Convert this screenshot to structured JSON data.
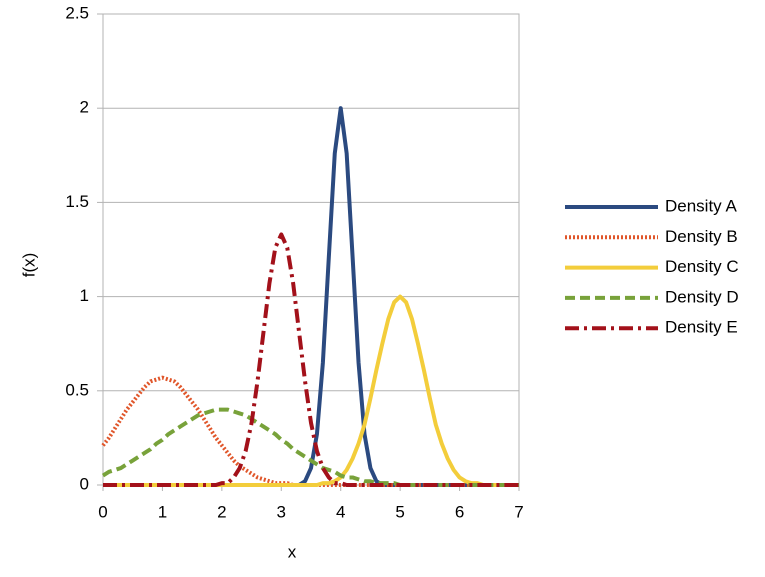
{
  "chart_data": {
    "type": "line",
    "xlabel": "x",
    "ylabel": "f(x)",
    "x": [
      0,
      0.1,
      0.2,
      0.3,
      0.4,
      0.5,
      0.6,
      0.7,
      0.8,
      0.9,
      1,
      1.1,
      1.2,
      1.3,
      1.4,
      1.5,
      1.6,
      1.7,
      1.8,
      1.9,
      2,
      2.1,
      2.2,
      2.3,
      2.4,
      2.5,
      2.6,
      2.7,
      2.8,
      2.9,
      3,
      3.1,
      3.2,
      3.3,
      3.4,
      3.5,
      3.6,
      3.7,
      3.8,
      3.9,
      4,
      4.1,
      4.2,
      4.3,
      4.4,
      4.5,
      4.6,
      4.7,
      4.8,
      4.9,
      5,
      5.1,
      5.2,
      5.3,
      5.4,
      5.5,
      5.6,
      5.7,
      5.8,
      5.9,
      6,
      6.1,
      6.2,
      6.3,
      6.4,
      6.5,
      6.6,
      6.7,
      6.8,
      6.9,
      7
    ],
    "series": [
      {
        "name": "Density A",
        "color": "#2b4a80",
        "dash": "solid",
        "values": [
          0,
          0,
          0,
          0,
          0,
          0,
          0,
          0,
          0,
          0,
          0,
          0,
          0,
          0,
          0,
          0,
          0,
          0,
          0,
          0,
          0,
          0,
          0,
          0,
          0,
          0,
          0,
          0,
          0,
          0,
          0,
          0,
          0,
          0,
          0.02,
          0.09,
          0.27,
          0.65,
          1.21,
          1.76,
          2,
          1.76,
          1.21,
          0.65,
          0.27,
          0.09,
          0.02,
          0,
          0,
          0,
          0,
          0,
          0,
          0,
          0,
          0,
          0,
          0,
          0,
          0,
          0,
          0,
          0,
          0,
          0,
          0,
          0,
          0,
          0,
          0,
          0
        ]
      },
      {
        "name": "Density B",
        "color": "#e0562a",
        "dash": "dotted",
        "values": [
          0.21,
          0.25,
          0.3,
          0.35,
          0.4,
          0.44,
          0.48,
          0.52,
          0.55,
          0.56,
          0.57,
          0.56,
          0.55,
          0.52,
          0.48,
          0.44,
          0.4,
          0.35,
          0.3,
          0.25,
          0.21,
          0.17,
          0.13,
          0.1,
          0.08,
          0.06,
          0.04,
          0.03,
          0.02,
          0.01,
          0.01,
          0.01,
          0,
          0,
          0,
          0,
          0,
          0,
          0,
          0,
          0,
          0,
          0,
          0,
          0,
          0,
          0,
          0,
          0,
          0,
          0,
          0,
          0,
          0,
          0,
          0,
          0,
          0,
          0,
          0,
          0,
          0,
          0,
          0,
          0,
          0,
          0,
          0,
          0,
          0,
          0
        ]
      },
      {
        "name": "Density C",
        "color": "#f3cd3b",
        "dash": "solid",
        "values": [
          0,
          0,
          0,
          0,
          0,
          0,
          0,
          0,
          0,
          0,
          0,
          0,
          0,
          0,
          0,
          0,
          0,
          0,
          0,
          0,
          0,
          0,
          0,
          0,
          0,
          0,
          0,
          0,
          0,
          0,
          0,
          0,
          0,
          0,
          0,
          0,
          0,
          0.01,
          0.01,
          0.02,
          0.04,
          0.08,
          0.14,
          0.22,
          0.32,
          0.46,
          0.61,
          0.75,
          0.88,
          0.97,
          1,
          0.97,
          0.88,
          0.75,
          0.61,
          0.46,
          0.32,
          0.22,
          0.14,
          0.08,
          0.04,
          0.02,
          0.01,
          0.01,
          0,
          0,
          0,
          0,
          0,
          0,
          0
        ]
      },
      {
        "name": "Density D",
        "color": "#78a23a",
        "dash": "dashed",
        "values": [
          0.05,
          0.07,
          0.08,
          0.09,
          0.11,
          0.13,
          0.15,
          0.17,
          0.19,
          0.22,
          0.24,
          0.27,
          0.29,
          0.31,
          0.33,
          0.35,
          0.37,
          0.38,
          0.39,
          0.4,
          0.4,
          0.4,
          0.39,
          0.38,
          0.37,
          0.35,
          0.33,
          0.31,
          0.29,
          0.27,
          0.24,
          0.22,
          0.19,
          0.17,
          0.15,
          0.13,
          0.11,
          0.09,
          0.08,
          0.07,
          0.05,
          0.04,
          0.04,
          0.03,
          0.02,
          0.02,
          0.01,
          0.01,
          0.01,
          0.01,
          0,
          0,
          0,
          0,
          0,
          0,
          0,
          0,
          0,
          0,
          0,
          0,
          0,
          0,
          0,
          0,
          0,
          0,
          0,
          0,
          0
        ]
      },
      {
        "name": "Density E",
        "color": "#a3111a",
        "dash": "dashdot",
        "values": [
          0,
          0,
          0,
          0,
          0,
          0,
          0,
          0,
          0,
          0,
          0,
          0,
          0,
          0,
          0,
          0,
          0,
          0,
          0,
          0,
          0.01,
          0.01,
          0.04,
          0.09,
          0.18,
          0.33,
          0.55,
          0.81,
          1.07,
          1.26,
          1.33,
          1.26,
          1.07,
          0.81,
          0.55,
          0.33,
          0.18,
          0.09,
          0.04,
          0.01,
          0.01,
          0,
          0,
          0,
          0,
          0,
          0,
          0,
          0,
          0,
          0,
          0,
          0,
          0,
          0,
          0,
          0,
          0,
          0,
          0,
          0,
          0,
          0,
          0,
          0,
          0,
          0,
          0,
          0,
          0,
          0
        ]
      }
    ],
    "xlim": [
      0,
      7
    ],
    "xticks": [
      0,
      1,
      2,
      3,
      4,
      5,
      6,
      7
    ],
    "ylim": [
      0,
      2.5
    ],
    "yticks": [
      0,
      0.5,
      1,
      1.5,
      2,
      2.5
    ],
    "grid": true,
    "legend": "right"
  }
}
